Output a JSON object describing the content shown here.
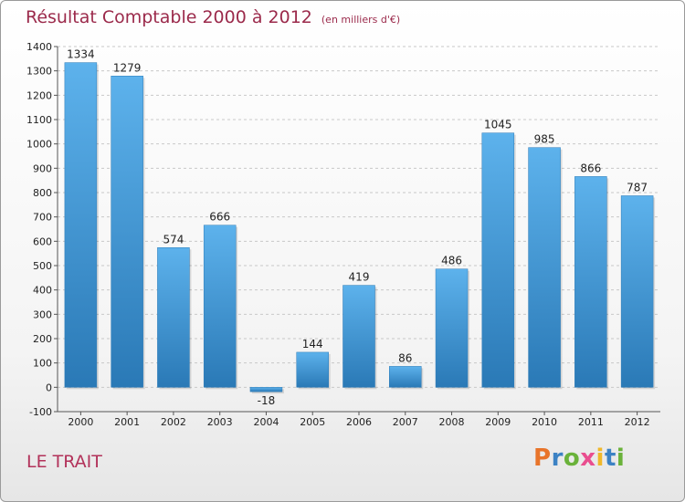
{
  "title": "Résultat Comptable 2000 à 2012",
  "subtitle": "(en milliers d'€)",
  "commune": "LE TRAIT",
  "logo": {
    "letters": [
      "P",
      "r",
      "o",
      "x",
      "i",
      "t",
      "i"
    ],
    "colors": [
      "#e8742a",
      "#3c82c4",
      "#6ab23a",
      "#e94e8f",
      "#f0b82a",
      "#3c82c4",
      "#6ab23a"
    ]
  },
  "colors": {
    "bar_top": "#5db2ec",
    "bar_bottom": "#2a79b6",
    "title": "#9b2a4b"
  },
  "chart_data": {
    "type": "bar",
    "categories": [
      "2000",
      "2001",
      "2002",
      "2003",
      "2004",
      "2005",
      "2006",
      "2007",
      "2008",
      "2009",
      "2010",
      "2011",
      "2012"
    ],
    "values": [
      1334,
      1279,
      574,
      666,
      -18,
      144,
      419,
      86,
      486,
      1045,
      985,
      866,
      787
    ],
    "ylim": [
      -100,
      1400
    ],
    "yticks": [
      -100,
      0,
      100,
      200,
      300,
      400,
      500,
      600,
      700,
      800,
      900,
      1000,
      1100,
      1200,
      1300,
      1400
    ],
    "grid": "horizontal dashed"
  }
}
